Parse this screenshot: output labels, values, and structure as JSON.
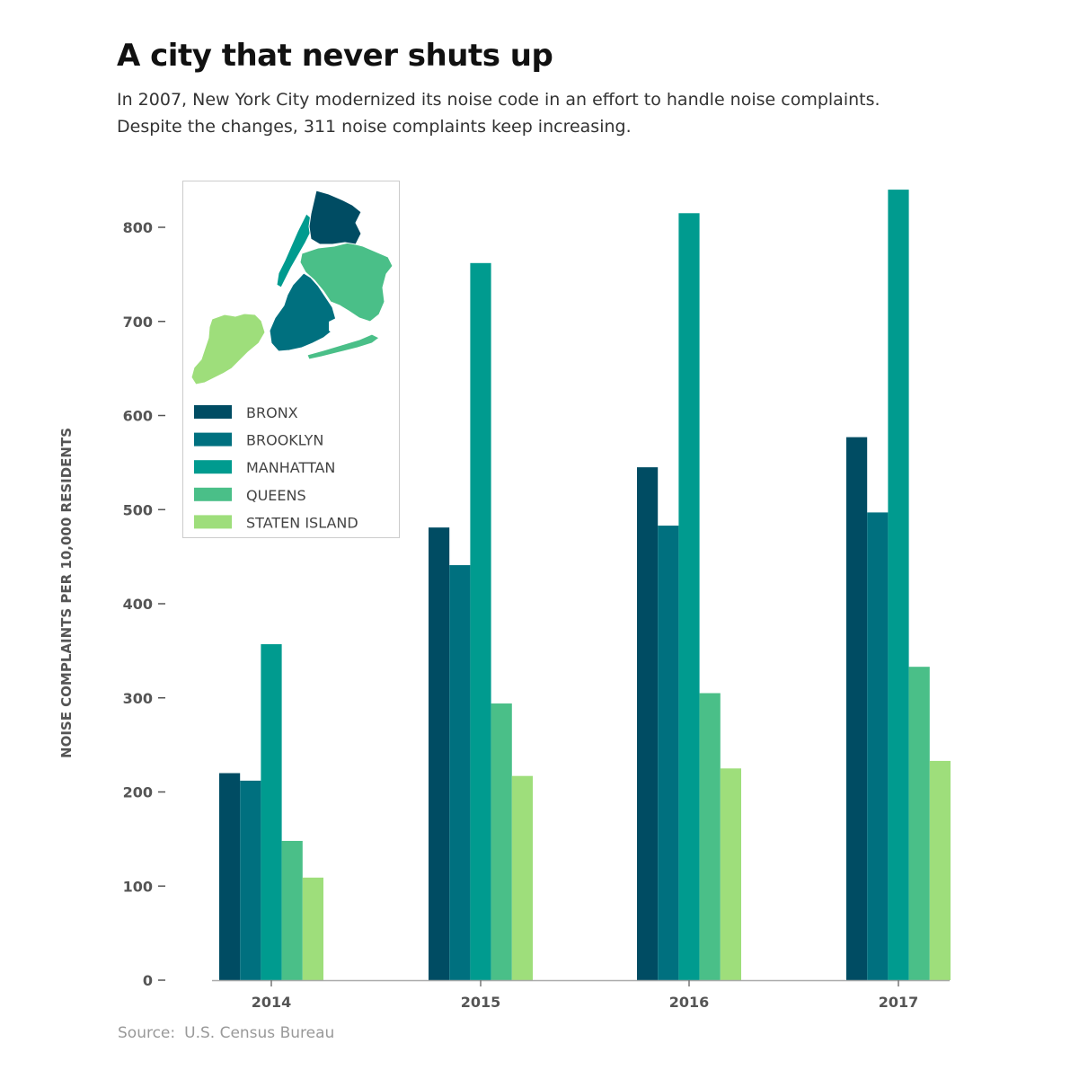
{
  "title": "A city that never shuts up",
  "subtitle_line1": "In 2007, New York City modernized its noise code in an effort to handle noise complaints.",
  "subtitle_line2": "Despite the changes, 311 noise complaints keep increasing.",
  "source_label": "Source:",
  "source_text": "U.S. Census Bureau",
  "chart_data": {
    "type": "bar",
    "title": "A city that never shuts up",
    "xlabel": "",
    "ylabel": "NOISE COMPLAINTS PER 10,000 RESIDENTS",
    "ylim": [
      0,
      840
    ],
    "yticks": [
      0,
      100,
      200,
      300,
      400,
      500,
      600,
      700,
      800
    ],
    "categories": [
      "2014",
      "2015",
      "2016",
      "2017"
    ],
    "grid": false,
    "legend_placement": "top-left",
    "series": [
      {
        "name": "BRONX",
        "color": "#004c63",
        "values": [
          220,
          481,
          545,
          577
        ]
      },
      {
        "name": "BROOKLYN",
        "color": "#00707f",
        "values": [
          212,
          441,
          483,
          497
        ]
      },
      {
        "name": "MANHATTAN",
        "color": "#009b8f",
        "values": [
          357,
          762,
          815,
          840
        ]
      },
      {
        "name": "QUEENS",
        "color": "#4abf88",
        "values": [
          148,
          294,
          305,
          333
        ]
      },
      {
        "name": "STATEN ISLAND",
        "color": "#9ede7b",
        "values": [
          109,
          217,
          225,
          233
        ]
      }
    ]
  },
  "map_regions": [
    {
      "name": "staten-island-region",
      "color": "#9ede7b"
    },
    {
      "name": "brooklyn-region",
      "color": "#00707f"
    },
    {
      "name": "queens-region",
      "color": "#4abf88"
    },
    {
      "name": "manhattan-region",
      "color": "#009b8f"
    },
    {
      "name": "bronx-region",
      "color": "#004c63"
    }
  ]
}
